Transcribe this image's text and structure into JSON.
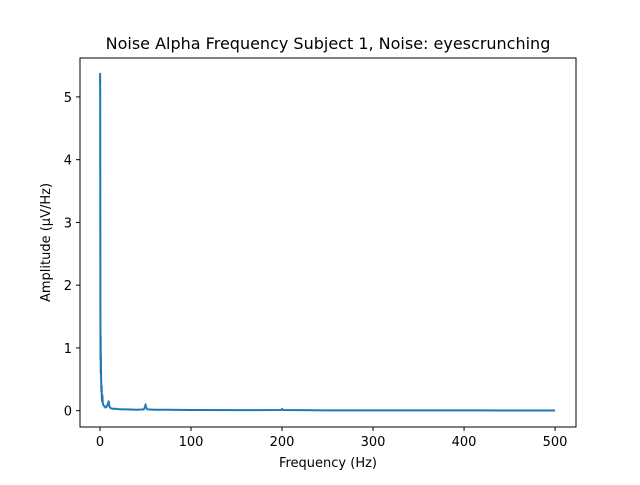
{
  "chart_data": {
    "type": "line",
    "title": "Noise Alpha Frequency Subject 1, Noise: eyescrunching",
    "xlabel": "Frequency (Hz)",
    "ylabel": "Amplitude (μV/Hz)",
    "xlim": [
      -22,
      523
    ],
    "ylim": [
      -0.26,
      5.62
    ],
    "grid": false,
    "legend": "none",
    "x_ticks": [
      0,
      100,
      200,
      300,
      400,
      500
    ],
    "y_ticks": [
      0,
      1,
      2,
      3,
      4,
      5
    ],
    "series": [
      {
        "color": "#1f77b4",
        "x": [
          0,
          0.1,
          0.2,
          0.3,
          0.4,
          0.5,
          0.6,
          0.7,
          0.8,
          0.9,
          1.0,
          1.2,
          1.5,
          1.8,
          2.0,
          2.3,
          2.6,
          3.0,
          3.5,
          4.0,
          5.0,
          6.0,
          7.0,
          8.0,
          9.0,
          9.5,
          10.0,
          10.5,
          11.0,
          12.0,
          14.0,
          17.0,
          20.0,
          25.0,
          30.0,
          40.0,
          48.0,
          49.5,
          50.0,
          50.5,
          52.0,
          60.0,
          75.0,
          100.0,
          150.0,
          199.0,
          200.0,
          201.0,
          250.0,
          300.0,
          350.0,
          400.0,
          415.0,
          450.0,
          500.0
        ],
        "y": [
          5.2,
          5.37,
          5.0,
          3.2,
          1.8,
          1.0,
          0.8,
          1.2,
          0.6,
          0.9,
          0.7,
          0.5,
          0.3,
          0.4,
          0.2,
          0.15,
          0.25,
          0.12,
          0.1,
          0.08,
          0.07,
          0.05,
          0.06,
          0.09,
          0.12,
          0.15,
          0.1,
          0.06,
          0.05,
          0.04,
          0.03,
          0.03,
          0.025,
          0.02,
          0.02,
          0.015,
          0.02,
          0.06,
          0.1,
          0.05,
          0.02,
          0.015,
          0.015,
          0.01,
          0.008,
          0.01,
          0.03,
          0.01,
          0.005,
          0.005,
          0.004,
          0.004,
          0.004,
          0.003,
          0.002
        ]
      }
    ]
  }
}
